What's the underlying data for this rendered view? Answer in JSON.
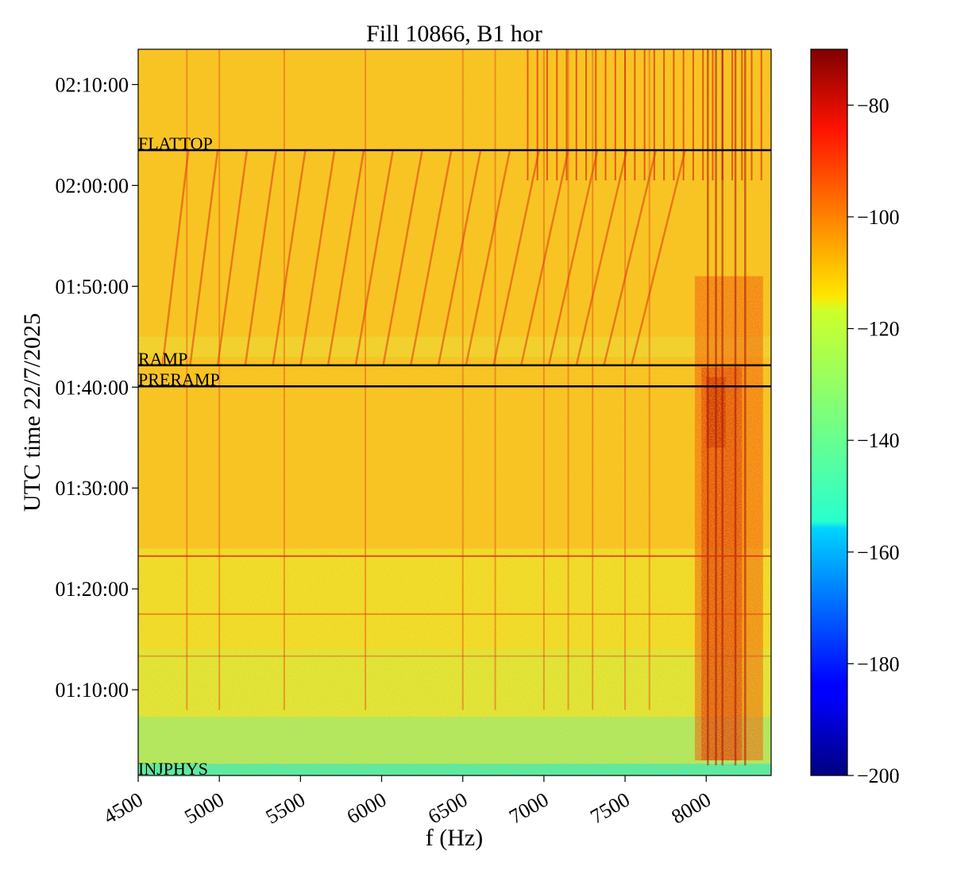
{
  "chart_data": {
    "type": "heatmap",
    "title": "Fill 10866, B1 hor",
    "xlabel": "f (Hz)",
    "ylabel": "UTC time 22/7/2025",
    "xlim": [
      4500,
      8400
    ],
    "ylim": [
      "01:01:30",
      "02:13:30"
    ],
    "x_ticks": [
      4500,
      5000,
      5500,
      6000,
      6500,
      7000,
      7500,
      8000
    ],
    "x_tick_labels": [
      "4500",
      "5000",
      "5500",
      "6000",
      "6500",
      "7000",
      "7500",
      "8000"
    ],
    "y_ticks": [
      "01:10:00",
      "01:20:00",
      "01:30:00",
      "01:40:00",
      "01:50:00",
      "02:00:00",
      "02:10:00"
    ],
    "colorbar": {
      "colormap": "jet",
      "range": [
        -200,
        -70
      ],
      "ticks": [
        -80,
        -100,
        -120,
        -140,
        -160,
        -180,
        -200
      ],
      "tick_labels": [
        "−80",
        "−100",
        "−120",
        "−140",
        "−160",
        "−180",
        "−200"
      ]
    },
    "phase_markers": [
      {
        "label": "FLATTOP",
        "time": "02:03:30"
      },
      {
        "label": "RAMP",
        "time": "01:42:10"
      },
      {
        "label": "PRERAMP",
        "time": "01:40:05"
      },
      {
        "label": "INJPHYS",
        "time": "01:01:30"
      }
    ],
    "grid": false,
    "legend": "none"
  }
}
